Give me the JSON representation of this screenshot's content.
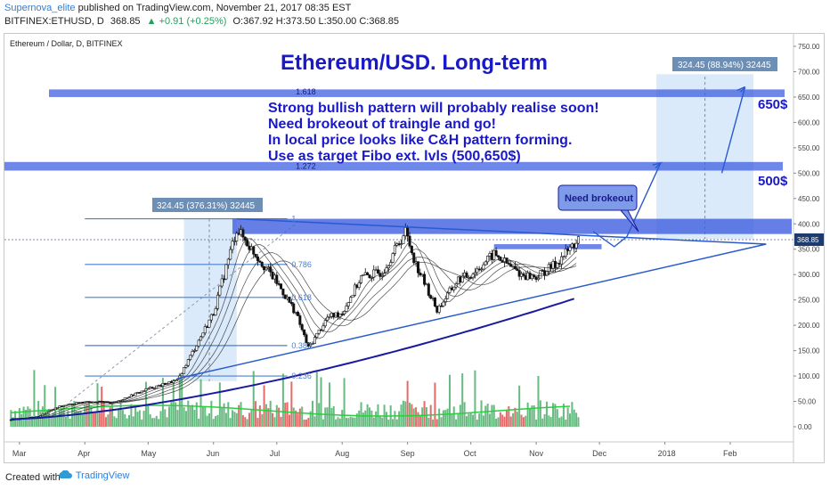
{
  "header": {
    "publisher": "Supernova_elite",
    "published_text": "published on TradingView.com, November 21, 2017 08:35 EST",
    "symbol": "BITFINEX:ETHUSD, D",
    "last": "368.85",
    "change": "▲ +0.91 (+0.25%)",
    "ohlc": "O:367.92 H:373.50 L:350.00 C:368.85"
  },
  "footer": {
    "created_with": "Created with",
    "brand": "TradingView"
  },
  "chart_data": {
    "type": "candlestick",
    "title": "Ethereum/USD. Long-term",
    "instrument": "Ethereum / Dollar, D, BITFINEX",
    "last_price_label": "368.85",
    "ylim": [
      -50,
      760
    ],
    "y_ticks": [
      "750.00",
      "700.00",
      "650.00",
      "600.00",
      "550.00",
      "500.00",
      "450.00",
      "400.00",
      "350.00",
      "300.00",
      "250.00",
      "200.00",
      "150.00",
      "100.00",
      "50.00",
      "0.00"
    ],
    "y_tick_values": [
      750,
      700,
      650,
      600,
      550,
      500,
      450,
      400,
      350,
      300,
      250,
      200,
      150,
      100,
      50,
      0
    ],
    "x_ticks": [
      "Mar",
      "Apr",
      "May",
      "Jun",
      "Jul",
      "Aug",
      "Sep",
      "Oct",
      "Nov",
      "Dec",
      "2018",
      "Feb"
    ],
    "x_tick_dates": [
      "2017-03-01",
      "2017-04-01",
      "2017-05-01",
      "2017-06-01",
      "2017-07-01",
      "2017-08-01",
      "2017-09-01",
      "2017-10-01",
      "2017-11-01",
      "2017-12-01",
      "2018-01-01",
      "2018-02-01"
    ],
    "annotation_lines": [
      "Strong bullish pattern will probably realise soon!",
      "Need brokeout of traingle and go!",
      "In local price looks like C&H pattern forming.",
      "Use as target Fibo ext. lvls (500,650$)"
    ],
    "callout": "Need brokeout",
    "target_labels": [
      "650$",
      "500$"
    ],
    "fib_levels": [
      {
        "label": "1.618",
        "value": 660
      },
      {
        "label": "1.272",
        "value": 515
      },
      {
        "label": "1",
        "value": 410
      },
      {
        "label": "0.786",
        "value": 320
      },
      {
        "label": "0.618",
        "value": 255
      },
      {
        "label": "0.382",
        "value": 160
      },
      {
        "label": "0.236",
        "value": 100
      }
    ],
    "measure_labels": [
      "324.45 (376.31%) 32445",
      "324.45 (88.94%) 32445"
    ],
    "price_path": [
      {
        "date": "2017-02-25",
        "value": 14
      },
      {
        "date": "2017-03-10",
        "value": 20
      },
      {
        "date": "2017-03-20",
        "value": 40
      },
      {
        "date": "2017-04-01",
        "value": 50
      },
      {
        "date": "2017-04-15",
        "value": 48
      },
      {
        "date": "2017-05-01",
        "value": 75
      },
      {
        "date": "2017-05-15",
        "value": 92
      },
      {
        "date": "2017-05-25",
        "value": 170
      },
      {
        "date": "2017-06-01",
        "value": 225
      },
      {
        "date": "2017-06-12",
        "value": 390
      },
      {
        "date": "2017-06-20",
        "value": 345
      },
      {
        "date": "2017-07-01",
        "value": 285
      },
      {
        "date": "2017-07-10",
        "value": 225
      },
      {
        "date": "2017-07-16",
        "value": 155
      },
      {
        "date": "2017-07-25",
        "value": 215
      },
      {
        "date": "2017-08-01",
        "value": 225
      },
      {
        "date": "2017-08-10",
        "value": 295
      },
      {
        "date": "2017-08-20",
        "value": 305
      },
      {
        "date": "2017-08-31",
        "value": 385
      },
      {
        "date": "2017-09-05",
        "value": 320
      },
      {
        "date": "2017-09-15",
        "value": 230
      },
      {
        "date": "2017-09-25",
        "value": 290
      },
      {
        "date": "2017-10-01",
        "value": 300
      },
      {
        "date": "2017-10-12",
        "value": 340
      },
      {
        "date": "2017-10-25",
        "value": 300
      },
      {
        "date": "2017-11-01",
        "value": 295
      },
      {
        "date": "2017-11-10",
        "value": 320
      },
      {
        "date": "2017-11-21",
        "value": 368.85
      }
    ]
  }
}
